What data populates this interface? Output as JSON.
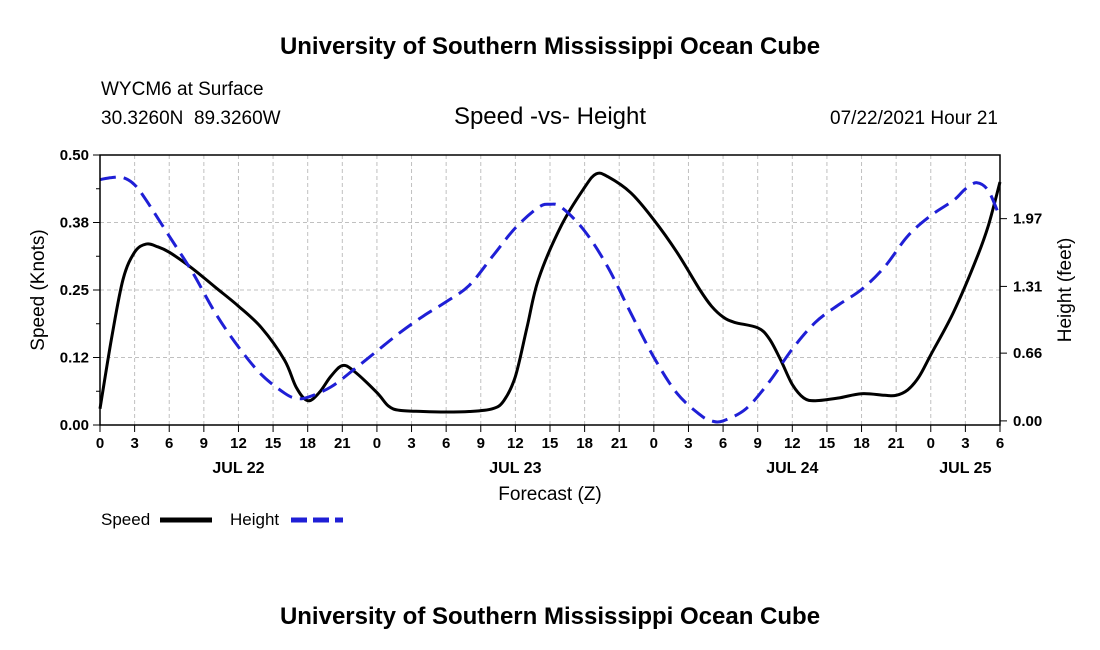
{
  "page": {
    "top_title": "University of Southern Mississippi Ocean Cube",
    "bottom_title": "University of Southern Mississippi Ocean Cube",
    "station": "WYCM6 at Surface",
    "location": "30.3260N  89.3260W",
    "plot_title": "Speed -vs- Height",
    "timestamp": "07/22/2021 Hour 21"
  },
  "colors": {
    "speed": "#000000",
    "height": "#1f1fd6",
    "grid": "#c0c0c0"
  },
  "chart_data": {
    "type": "line",
    "title": "Speed -vs- Height",
    "xlabel": "Forecast (Z)",
    "ylabel_left": "Speed (Knots)",
    "ylabel_right": "Height (feet)",
    "x_range_hours": [
      0,
      78
    ],
    "x_tick_labels": [
      "0",
      "3",
      "6",
      "9",
      "12",
      "15",
      "18",
      "21",
      "0",
      "3",
      "6",
      "9",
      "12",
      "15",
      "18",
      "21",
      "0",
      "3",
      "6",
      "9",
      "12",
      "15",
      "18",
      "21",
      "0",
      "3",
      "6"
    ],
    "date_labels": [
      {
        "label": "JUL 22",
        "hour": 12
      },
      {
        "label": "JUL 23",
        "hour": 36
      },
      {
        "label": "JUL 24",
        "hour": 60
      },
      {
        "label": "JUL 25",
        "hour": 75
      }
    ],
    "left_axis": {
      "range": [
        0,
        0.5
      ],
      "ticks": [
        0.0,
        0.125,
        0.25,
        0.375,
        0.5
      ],
      "tick_labels": [
        "0.00",
        "0.12",
        "0.25",
        "0.38",
        "0.50"
      ]
    },
    "right_axis": {
      "range": [
        -0.04,
        2.59
      ],
      "ticks": [
        0.0,
        0.66,
        1.31,
        1.97
      ],
      "tick_labels": [
        "0.00",
        "0.66",
        "1.31",
        "1.97"
      ]
    },
    "grid": true,
    "legend": {
      "placement": "bottom-left",
      "speed_label": "Speed",
      "height_label": "Height"
    },
    "series": [
      {
        "name": "Speed",
        "axis": "left",
        "style": "solid",
        "points": [
          [
            0,
            0.03
          ],
          [
            1,
            0.16
          ],
          [
            2,
            0.27
          ],
          [
            3,
            0.32
          ],
          [
            4,
            0.335
          ],
          [
            5,
            0.33
          ],
          [
            6,
            0.32
          ],
          [
            8,
            0.29
          ],
          [
            10,
            0.255
          ],
          [
            12,
            0.22
          ],
          [
            14,
            0.18
          ],
          [
            16,
            0.12
          ],
          [
            17,
            0.07
          ],
          [
            18,
            0.045
          ],
          [
            19,
            0.06
          ],
          [
            20,
            0.09
          ],
          [
            21,
            0.11
          ],
          [
            22,
            0.1
          ],
          [
            24,
            0.06
          ],
          [
            25,
            0.035
          ],
          [
            26,
            0.027
          ],
          [
            28,
            0.025
          ],
          [
            30,
            0.024
          ],
          [
            32,
            0.025
          ],
          [
            34,
            0.03
          ],
          [
            35,
            0.045
          ],
          [
            36,
            0.09
          ],
          [
            37,
            0.18
          ],
          [
            38,
            0.27
          ],
          [
            40,
            0.37
          ],
          [
            42,
            0.44
          ],
          [
            43,
            0.465
          ],
          [
            44,
            0.46
          ],
          [
            46,
            0.43
          ],
          [
            48,
            0.38
          ],
          [
            50,
            0.32
          ],
          [
            52,
            0.25
          ],
          [
            53,
            0.22
          ],
          [
            54,
            0.2
          ],
          [
            55,
            0.19
          ],
          [
            57,
            0.18
          ],
          [
            58,
            0.16
          ],
          [
            59,
            0.12
          ],
          [
            60,
            0.075
          ],
          [
            61,
            0.05
          ],
          [
            62,
            0.045
          ],
          [
            64,
            0.05
          ],
          [
            66,
            0.058
          ],
          [
            68,
            0.055
          ],
          [
            69,
            0.055
          ],
          [
            70,
            0.065
          ],
          [
            71,
            0.09
          ],
          [
            72,
            0.13
          ],
          [
            74,
            0.21
          ],
          [
            76,
            0.31
          ],
          [
            77,
            0.37
          ],
          [
            78,
            0.45
          ]
        ]
      },
      {
        "name": "Height",
        "axis": "right",
        "style": "dashed",
        "points": [
          [
            0,
            2.35
          ],
          [
            1,
            2.37
          ],
          [
            2,
            2.37
          ],
          [
            3,
            2.3
          ],
          [
            4,
            2.15
          ],
          [
            6,
            1.8
          ],
          [
            8,
            1.45
          ],
          [
            10,
            1.05
          ],
          [
            12,
            0.72
          ],
          [
            14,
            0.45
          ],
          [
            16,
            0.27
          ],
          [
            17,
            0.22
          ],
          [
            18,
            0.23
          ],
          [
            20,
            0.33
          ],
          [
            22,
            0.5
          ],
          [
            24,
            0.68
          ],
          [
            26,
            0.86
          ],
          [
            28,
            1.02
          ],
          [
            30,
            1.16
          ],
          [
            32,
            1.32
          ],
          [
            34,
            1.6
          ],
          [
            36,
            1.88
          ],
          [
            38,
            2.08
          ],
          [
            39,
            2.11
          ],
          [
            40,
            2.08
          ],
          [
            42,
            1.85
          ],
          [
            44,
            1.5
          ],
          [
            46,
            1.05
          ],
          [
            48,
            0.62
          ],
          [
            50,
            0.27
          ],
          [
            52,
            0.06
          ],
          [
            53,
            0.0
          ],
          [
            54,
            0.0
          ],
          [
            56,
            0.12
          ],
          [
            58,
            0.38
          ],
          [
            60,
            0.7
          ],
          [
            62,
            0.96
          ],
          [
            64,
            1.13
          ],
          [
            66,
            1.28
          ],
          [
            68,
            1.5
          ],
          [
            70,
            1.8
          ],
          [
            72,
            2.0
          ],
          [
            74,
            2.15
          ],
          [
            75,
            2.26
          ],
          [
            76,
            2.32
          ],
          [
            77,
            2.24
          ],
          [
            78,
            1.98
          ]
        ]
      }
    ]
  }
}
